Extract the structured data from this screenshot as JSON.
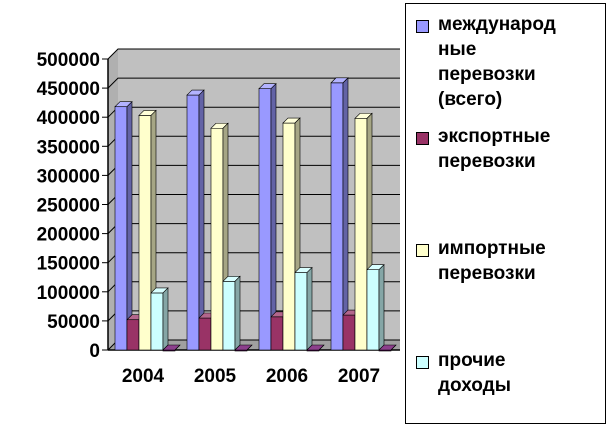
{
  "chart_data": {
    "type": "bar",
    "title": "",
    "xlabel": "",
    "ylabel": "",
    "categories": [
      "2004",
      "2005",
      "2006",
      "2007"
    ],
    "ylim": [
      0,
      500000
    ],
    "yticks": [
      0,
      50000,
      100000,
      150000,
      200000,
      250000,
      300000,
      350000,
      400000,
      450000,
      500000
    ],
    "grid": true,
    "legend_position": "right",
    "series": [
      {
        "name": "международные перевозки (всего)",
        "color": "#9999ff",
        "values": [
          418000,
          438000,
          449000,
          459000
        ]
      },
      {
        "name": "экспортные перевозки",
        "color": "#993366",
        "values": [
          52000,
          55000,
          57000,
          60000
        ]
      },
      {
        "name": "импортные перевозки",
        "color": "#ffffcc",
        "values": [
          403000,
          381000,
          390000,
          398000
        ]
      },
      {
        "name": "прочие доходы",
        "color": "#ccffff",
        "values": [
          98000,
          118000,
          133000,
          138000
        ]
      },
      {
        "name": "",
        "color": "#660066",
        "values": [
          0,
          0,
          0,
          0
        ]
      }
    ]
  },
  "legend": {
    "items": [
      {
        "lines": [
          "международ",
          "ные",
          "перевозки",
          "(всего)"
        ],
        "color": "#9999ff"
      },
      {
        "lines": [
          "экспортные",
          "перевозки"
        ],
        "color": "#993366"
      },
      {
        "lines": [
          "импортные",
          "перевозки"
        ],
        "color": "#ffffcc"
      },
      {
        "lines": [
          "прочие",
          "доходы"
        ],
        "color": "#ccffff"
      }
    ]
  }
}
